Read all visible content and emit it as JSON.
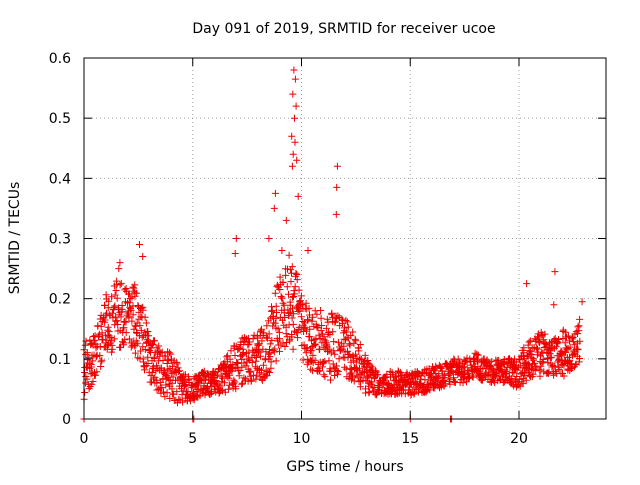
{
  "chart_data": {
    "type": "scatter",
    "title": "Day 091 of 2019, SRMTID for receiver ucoe",
    "xlabel": "GPS time / hours",
    "ylabel": "SRMTID / TECUs",
    "xlim": [
      0,
      24
    ],
    "ylim": [
      0,
      0.6
    ],
    "x_ticks": [
      0,
      5,
      10,
      15,
      20
    ],
    "x_tick_labels": [
      "0",
      "5",
      "10",
      "15",
      "20"
    ],
    "y_ticks": [
      0,
      0.1,
      0.2,
      0.3,
      0.4,
      0.5,
      0.6
    ],
    "y_tick_labels": [
      "0",
      "0.1",
      "0.2",
      "0.3",
      "0.4",
      "0.5",
      "0.6"
    ],
    "grid": true,
    "marker": "+",
    "color": "#ee0000",
    "series": [
      {
        "name": "SRMTID",
        "envelope_hours": [
          0,
          0.5,
          1.0,
          1.5,
          2.0,
          2.5,
          3.0,
          3.5,
          4.0,
          4.5,
          5.0,
          5.5,
          6.0,
          6.5,
          7.0,
          7.5,
          8.0,
          8.5,
          9.0,
          9.5,
          10.0,
          10.5,
          11.0,
          11.5,
          12.0,
          12.5,
          13.0,
          13.5,
          14.0,
          14.5,
          15.0,
          15.5,
          16.0,
          16.5,
          17.0,
          17.5,
          18.0,
          18.5,
          19.0,
          19.5,
          20.0,
          20.5,
          21.0,
          21.5,
          22.0,
          22.5,
          22.8
        ],
        "envelope_typical": [
          0.08,
          0.1,
          0.16,
          0.17,
          0.18,
          0.16,
          0.1,
          0.08,
          0.07,
          0.05,
          0.05,
          0.06,
          0.06,
          0.07,
          0.09,
          0.1,
          0.1,
          0.12,
          0.17,
          0.2,
          0.15,
          0.13,
          0.13,
          0.12,
          0.12,
          0.1,
          0.07,
          0.06,
          0.06,
          0.06,
          0.06,
          0.06,
          0.07,
          0.07,
          0.08,
          0.08,
          0.09,
          0.08,
          0.08,
          0.08,
          0.08,
          0.1,
          0.11,
          0.1,
          0.11,
          0.11,
          0.13
        ],
        "envelope_spread": [
          0.05,
          0.04,
          0.05,
          0.06,
          0.05,
          0.06,
          0.04,
          0.04,
          0.04,
          0.03,
          0.02,
          0.02,
          0.02,
          0.03,
          0.04,
          0.04,
          0.04,
          0.05,
          0.07,
          0.08,
          0.06,
          0.05,
          0.06,
          0.06,
          0.05,
          0.04,
          0.03,
          0.02,
          0.02,
          0.02,
          0.02,
          0.02,
          0.02,
          0.02,
          0.02,
          0.02,
          0.02,
          0.02,
          0.02,
          0.02,
          0.03,
          0.03,
          0.04,
          0.03,
          0.04,
          0.03,
          0.04
        ],
        "sample_interval_hours": 0.02,
        "spikes": [
          {
            "x": 9.65,
            "y": 0.58
          },
          {
            "x": 9.72,
            "y": 0.565
          },
          {
            "x": 9.6,
            "y": 0.54
          },
          {
            "x": 9.75,
            "y": 0.52
          },
          {
            "x": 9.68,
            "y": 0.5
          },
          {
            "x": 9.55,
            "y": 0.47
          },
          {
            "x": 9.7,
            "y": 0.46
          },
          {
            "x": 9.62,
            "y": 0.44
          },
          {
            "x": 9.58,
            "y": 0.42
          },
          {
            "x": 9.78,
            "y": 0.43
          },
          {
            "x": 11.65,
            "y": 0.42
          },
          {
            "x": 11.62,
            "y": 0.385
          },
          {
            "x": 8.8,
            "y": 0.375
          },
          {
            "x": 8.75,
            "y": 0.35
          },
          {
            "x": 9.3,
            "y": 0.33
          },
          {
            "x": 11.6,
            "y": 0.34
          },
          {
            "x": 7.0,
            "y": 0.3
          },
          {
            "x": 6.95,
            "y": 0.275
          },
          {
            "x": 2.55,
            "y": 0.29
          },
          {
            "x": 2.7,
            "y": 0.27
          },
          {
            "x": 1.65,
            "y": 0.26
          },
          {
            "x": 1.6,
            "y": 0.25
          },
          {
            "x": 9.85,
            "y": 0.37
          },
          {
            "x": 10.3,
            "y": 0.28
          },
          {
            "x": 21.65,
            "y": 0.245
          },
          {
            "x": 20.35,
            "y": 0.225
          },
          {
            "x": 21.6,
            "y": 0.19
          },
          {
            "x": 22.9,
            "y": 0.195
          },
          {
            "x": 8.5,
            "y": 0.3
          },
          {
            "x": 9.1,
            "y": 0.28
          }
        ],
        "zero_points": [
          {
            "x": 0.0,
            "y": 0.0
          },
          {
            "x": 5.0,
            "y": 0.0
          },
          {
            "x": 5.05,
            "y": 0.0
          },
          {
            "x": 15.0,
            "y": 0.0
          },
          {
            "x": 16.85,
            "y": 0.0
          },
          {
            "x": 16.9,
            "y": 0.0
          }
        ]
      }
    ]
  }
}
